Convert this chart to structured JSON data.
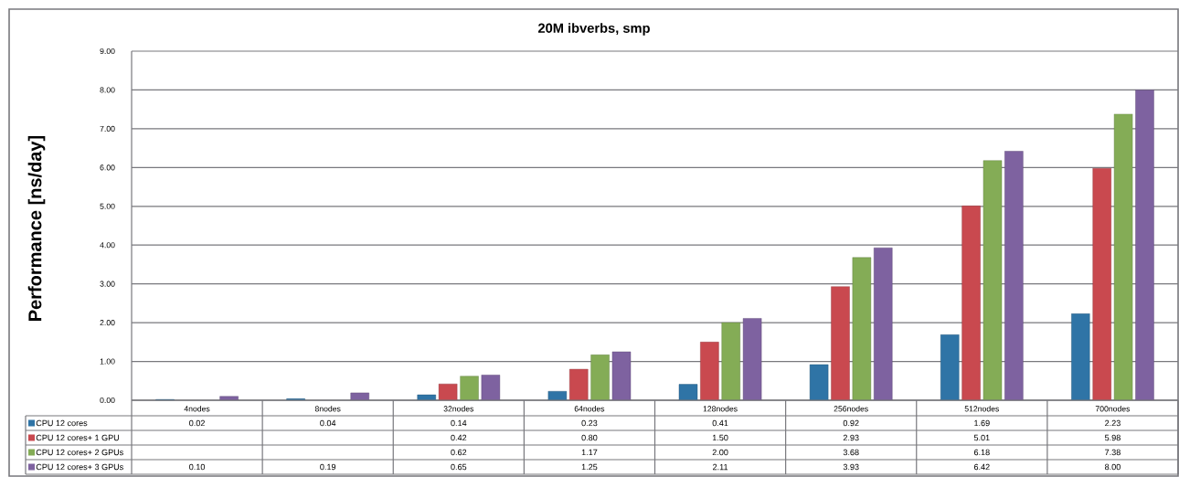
{
  "chart_data": {
    "type": "bar",
    "title": "20M ibverbs, smp",
    "ylabel": "Performance [ns/day]",
    "categories": [
      "4nodes",
      "8nodes",
      "32nodes",
      "64nodes",
      "128nodes",
      "256nodes",
      "512nodes",
      "700nodes"
    ],
    "series": [
      {
        "name": "CPU 12 cores",
        "color": "#2f74a6",
        "values": [
          0.02,
          0.04,
          0.14,
          0.23,
          0.41,
          0.92,
          1.69,
          2.23
        ],
        "value_labels": [
          "0.02",
          "0.04",
          "0.14",
          "0.23",
          "0.41",
          "0.92",
          "1.69",
          "2.23"
        ]
      },
      {
        "name": "CPU 12 cores+ 1 GPU",
        "color": "#c9494f",
        "values": [
          null,
          null,
          0.42,
          0.8,
          1.5,
          2.93,
          5.01,
          5.98
        ],
        "value_labels": [
          null,
          null,
          "0.42",
          "0.80",
          "1.50",
          "2.93",
          "5.01",
          "5.98"
        ]
      },
      {
        "name": "CPU 12 cores+ 2 GPUs",
        "color": "#84ac56",
        "values": [
          null,
          null,
          0.62,
          1.17,
          2.0,
          3.68,
          6.18,
          7.38
        ],
        "value_labels": [
          null,
          null,
          "0.62",
          "1.17",
          "2.00",
          "3.68",
          "6.18",
          "7.38"
        ]
      },
      {
        "name": "CPU 12 cores+ 3 GPUs",
        "color": "#7e62a0",
        "values": [
          0.1,
          0.19,
          0.65,
          1.25,
          2.11,
          3.93,
          6.42,
          8.0
        ],
        "value_labels": [
          "0.10",
          "0.19",
          "0.65",
          "1.25",
          "2.11",
          "3.93",
          "6.42",
          "8.00"
        ]
      }
    ],
    "ylim": [
      0,
      9
    ],
    "yticks": [
      {
        "value": 0,
        "label": "0.00"
      },
      {
        "value": 1,
        "label": "1.00"
      },
      {
        "value": 2,
        "label": "2.00"
      },
      {
        "value": 3,
        "label": "3.00"
      },
      {
        "value": 4,
        "label": "4.00"
      },
      {
        "value": 5,
        "label": "5.00"
      },
      {
        "value": 6,
        "label": "6.00"
      },
      {
        "value": 7,
        "label": "7.00"
      },
      {
        "value": 8,
        "label": "8.00"
      },
      {
        "value": 9,
        "label": "9.00"
      }
    ],
    "grid": "y",
    "legend": "bottom"
  }
}
